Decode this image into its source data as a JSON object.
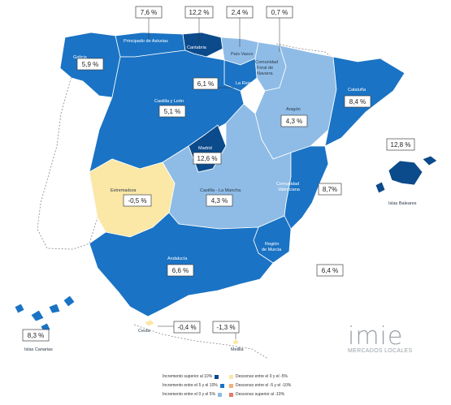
{
  "colors": {
    "gt10": "#0b4a8b",
    "from5to10": "#1a73c4",
    "from0to5": "#8fbce6",
    "dec0to5": "#fbe7a6",
    "dec5to10": "#f3b07a",
    "decgt10": "#e87a6a"
  },
  "regions": [
    {
      "id": "galicia",
      "name": "Galicia",
      "value": "5,9 %",
      "tier": "from5to10"
    },
    {
      "id": "asturias",
      "name": "Principado de Asturias",
      "value": "7,6 %",
      "tier": "from5to10"
    },
    {
      "id": "cantabria",
      "name": "Cantabria",
      "value": "12,2 %",
      "tier": "gt10"
    },
    {
      "id": "pais-vasco",
      "name": "País Vasco",
      "value": "2,4 %",
      "tier": "from0to5"
    },
    {
      "id": "navarra",
      "name": "Comunidad Foral de Navarra",
      "value": "0,7 %",
      "tier": "from0to5"
    },
    {
      "id": "la-rioja",
      "name": "La Rioja",
      "value": "6,1 %",
      "tier": "from5to10"
    },
    {
      "id": "castilla-leon",
      "name": "Castilla y León",
      "value": "5,1 %",
      "tier": "from5to10"
    },
    {
      "id": "aragon",
      "name": "Aragón",
      "value": "4,3 %",
      "tier": "from0to5"
    },
    {
      "id": "cataluna",
      "name": "Cataluña",
      "value": "8,4 %",
      "tier": "from5to10"
    },
    {
      "id": "madrid",
      "name": "Madrid",
      "value": "12,6 %",
      "tier": "gt10"
    },
    {
      "id": "castilla-la-mancha",
      "name": "Castilla - La Mancha",
      "value": "4,3 %",
      "tier": "from0to5"
    },
    {
      "id": "extremadura",
      "name": "Extremadura",
      "value": "-0,5 %",
      "tier": "dec0to5"
    },
    {
      "id": "valencia",
      "name": "Comunidad Valenciana",
      "value": "8,7%",
      "tier": "from5to10"
    },
    {
      "id": "murcia",
      "name": "Región de Murcia",
      "value": "6,4 %",
      "tier": "from5to10"
    },
    {
      "id": "andalucia",
      "name": "Andalucía",
      "value": "6,6 %",
      "tier": "from5to10"
    },
    {
      "id": "baleares",
      "name": "Islas Baleares",
      "value": "12,8 %",
      "tier": "gt10"
    },
    {
      "id": "canarias",
      "name": "Islas Canarias",
      "value": "8,3 %",
      "tier": "from5to10"
    },
    {
      "id": "ceuta",
      "name": "Ceuta",
      "value": "-0,4 %",
      "tier": "dec0to5"
    },
    {
      "id": "melilla",
      "name": "Melilla",
      "value": "-1,3 %",
      "tier": "dec0to5"
    }
  ],
  "logo": {
    "brand": "imie",
    "tagline": "MERCADOS LOCALES"
  },
  "legend": [
    {
      "label": "Incremento superior al 10%",
      "tier": "gt10"
    },
    {
      "label": "Incremento entre el 5 y el 10%",
      "tier": "from5to10"
    },
    {
      "label": "Incremento entre el 0 y el 5%",
      "tier": "from0to5"
    },
    {
      "label": "Descenso entre el 0 y el -5%",
      "tier": "dec0to5"
    },
    {
      "label": "Descenso entre el -5 y el -10%",
      "tier": "dec5to10"
    },
    {
      "label": "Descenso superior al -10%",
      "tier": "decgt10"
    }
  ]
}
